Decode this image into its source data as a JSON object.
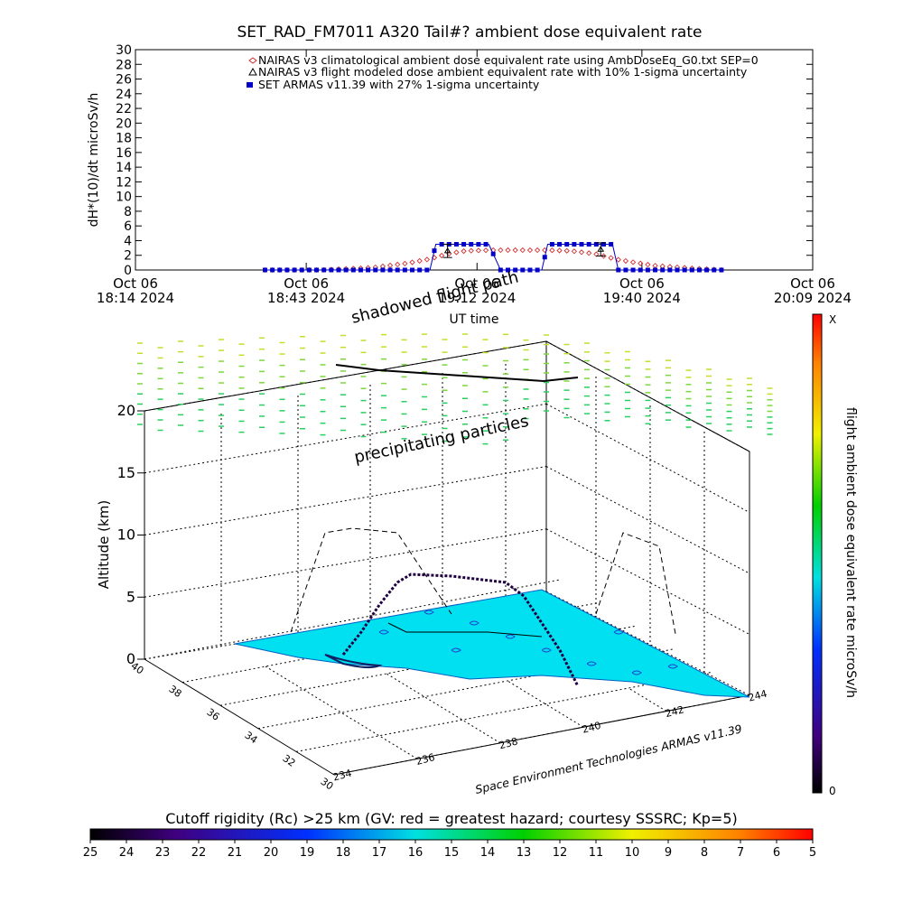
{
  "chart_data": [
    {
      "type": "line",
      "title": "SET_RAD_FM7011  A320 Tail#? ambient dose equivalent rate",
      "ylabel": "dH*(10)/dt microSv/h",
      "xlabel": "UT time",
      "ylim": [
        0,
        30
      ],
      "yticks": [
        0,
        2,
        4,
        6,
        8,
        10,
        12,
        14,
        16,
        18,
        20,
        22,
        24,
        26,
        28,
        30
      ],
      "xlim_minutes": [
        0,
        115
      ],
      "xtick_minutes": [
        0,
        29,
        58,
        86,
        115
      ],
      "xtick_labels": [
        {
          "top": "Oct 06",
          "bottom": "18:14 2024"
        },
        {
          "top": "Oct 06",
          "bottom": "18:43 2024"
        },
        {
          "top": "Oct 06",
          "bottom": "19:12 2024"
        },
        {
          "top": "Oct 06",
          "bottom": "19:40 2024"
        },
        {
          "top": "Oct 06",
          "bottom": "20:09 2024"
        }
      ],
      "legend_position": "top",
      "legend": [
        "NAIRAS v3 climatological ambient dose equivalent rate using AmbDoseEq_G0.txt SEP=0",
        "NAIRAS v3 flight modeled dose ambient equivalent rate with 10% 1-sigma uncertainty",
        "SET ARMAS v11.39 with 27% 1-sigma uncertainty"
      ],
      "series": [
        {
          "color": "#d03030",
          "x": [
            22,
            31,
            40,
            46,
            50,
            53,
            56,
            60,
            65,
            70,
            74,
            78,
            82,
            88,
            95,
            100
          ],
          "y": [
            0,
            0,
            0.3,
            0.9,
            1.5,
            2.2,
            2.6,
            2.7,
            2.7,
            2.7,
            2.6,
            2.2,
            1.4,
            0.6,
            0.2,
            0
          ]
        },
        {
          "color": "#0000c8",
          "x": [
            22,
            50,
            51,
            60,
            62,
            63,
            69,
            70,
            81,
            82,
            100
          ],
          "y": [
            0,
            0,
            3.5,
            3.5,
            0,
            0,
            0,
            3.5,
            3.5,
            0,
            0
          ]
        },
        {
          "color": "#000000",
          "x": [
            53,
            79
          ],
          "y": [
            2.6,
            2.8
          ],
          "err": [
            0.3,
            0.3
          ]
        }
      ]
    },
    {
      "type": "scatter",
      "zlabel": "Altitude (km)",
      "zticks": [
        0,
        5,
        10,
        15,
        20
      ],
      "lat_ticks": [
        40,
        38,
        36,
        34,
        32,
        30
      ],
      "lon_ticks": [
        234,
        236,
        238,
        240,
        242,
        244
      ],
      "annotations": [
        "shadowed flight path",
        "precipitating particles"
      ],
      "credit": "Space Environment Technologies ARMAS v11.39",
      "colorbar_right": {
        "label": "flight ambient dose equivalent rate microSv/h",
        "max_label": "X",
        "min_label": "0"
      },
      "colorbar_bottom": {
        "title": "Cutoff rigidity (Rc) >25 km (GV: red = greatest hazard; courtesy SSSRC; Kp=5)",
        "ticks": [
          25,
          24,
          23,
          22,
          21,
          20,
          19,
          18,
          17,
          16,
          15,
          14,
          13,
          12,
          11,
          10,
          9,
          8,
          7,
          6,
          5
        ]
      }
    }
  ]
}
